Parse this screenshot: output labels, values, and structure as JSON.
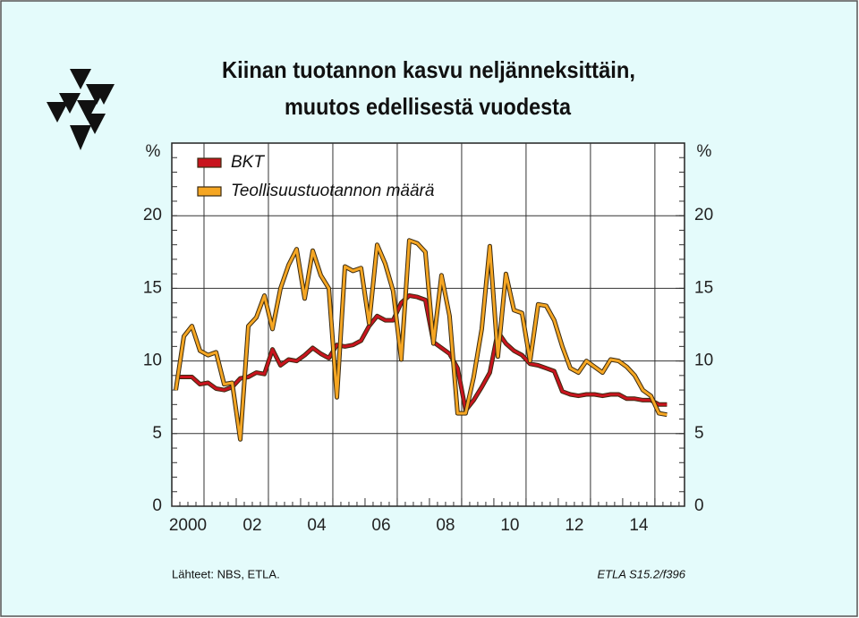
{
  "chart_data": {
    "type": "line",
    "title": "Kiinan tuotannon kasvu neljänneksittäin,",
    "subtitle": "muutos edellisestä vuodesta",
    "ylabel": "%",
    "y2label": "%",
    "source": "Lähteet:  NBS, ETLA.",
    "code": "ETLA S15.2/f396",
    "xlim": [
      2000,
      2015.92
    ],
    "xticks": [
      {
        "value": 2000.5,
        "label": "2000"
      },
      {
        "value": 2002.5,
        "label": "02"
      },
      {
        "value": 2004.5,
        "label": "04"
      },
      {
        "value": 2006.5,
        "label": "06"
      },
      {
        "value": 2008.5,
        "label": "08"
      },
      {
        "value": 2010.5,
        "label": "10"
      },
      {
        "value": 2012.5,
        "label": "12"
      },
      {
        "value": 2014.5,
        "label": "14"
      }
    ],
    "xgrid": [
      2001,
      2003,
      2005,
      2007,
      2009,
      2011,
      2013,
      2015
    ],
    "ylim": [
      0,
      25
    ],
    "yticks": [
      0,
      5,
      10,
      15,
      20
    ],
    "y2lim": [
      0,
      25
    ],
    "y2ticks": [
      0,
      5,
      10,
      15,
      20
    ],
    "grid": true,
    "legend": "top-left",
    "x": [
      2000.125,
      2000.375,
      2000.625,
      2000.875,
      2001.125,
      2001.375,
      2001.625,
      2001.875,
      2002.125,
      2002.375,
      2002.625,
      2002.875,
      2003.125,
      2003.375,
      2003.625,
      2003.875,
      2004.125,
      2004.375,
      2004.625,
      2004.875,
      2005.125,
      2005.375,
      2005.625,
      2005.875,
      2006.125,
      2006.375,
      2006.625,
      2006.875,
      2007.125,
      2007.375,
      2007.625,
      2007.875,
      2008.125,
      2008.375,
      2008.625,
      2008.875,
      2009.125,
      2009.375,
      2009.625,
      2009.875,
      2010.125,
      2010.375,
      2010.625,
      2010.875,
      2011.125,
      2011.375,
      2011.625,
      2011.875,
      2012.125,
      2012.375,
      2012.625,
      2012.875,
      2013.125,
      2013.375,
      2013.625,
      2013.875,
      2014.125,
      2014.375,
      2014.625,
      2014.875,
      2015.125,
      2015.375
    ],
    "series": [
      {
        "name": "BKT",
        "color": "#c8141e",
        "values": [
          8.9,
          8.9,
          8.9,
          8.4,
          8.5,
          8.1,
          8.0,
          8.2,
          8.8,
          8.9,
          9.2,
          9.1,
          10.8,
          9.7,
          10.1,
          10.0,
          10.4,
          10.9,
          10.5,
          10.2,
          11.1,
          11.0,
          11.1,
          11.4,
          12.4,
          13.1,
          12.8,
          12.8,
          14.0,
          14.5,
          14.4,
          14.2,
          11.3,
          10.9,
          10.5,
          9.5,
          6.6,
          7.3,
          8.2,
          9.2,
          12.0,
          11.2,
          10.7,
          10.4,
          9.8,
          9.7,
          9.5,
          9.3,
          7.9,
          7.7,
          7.6,
          7.7,
          7.7,
          7.6,
          7.7,
          7.7,
          7.4,
          7.4,
          7.3,
          7.3,
          7.0,
          7.0
        ]
      },
      {
        "name": "Teollisuustuotannon määrä",
        "color": "#f5a623",
        "values": [
          8.0,
          11.7,
          12.4,
          10.7,
          10.4,
          10.6,
          8.4,
          8.5,
          4.6,
          12.4,
          13.0,
          14.5,
          12.2,
          15.0,
          16.6,
          17.7,
          14.3,
          17.6,
          15.9,
          15.0,
          7.5,
          16.5,
          16.2,
          16.4,
          12.6,
          18.0,
          16.7,
          14.8,
          10.1,
          18.3,
          18.1,
          17.5,
          11.2,
          15.9,
          13.1,
          6.4,
          6.4,
          8.9,
          12.2,
          17.9,
          10.3,
          16.0,
          13.5,
          13.3,
          10.0,
          13.9,
          13.8,
          12.8,
          11.0,
          9.5,
          9.2,
          10.0,
          9.6,
          9.2,
          10.1,
          10.0,
          9.6,
          9.0,
          8.0,
          7.6,
          6.4,
          6.3
        ]
      }
    ]
  }
}
